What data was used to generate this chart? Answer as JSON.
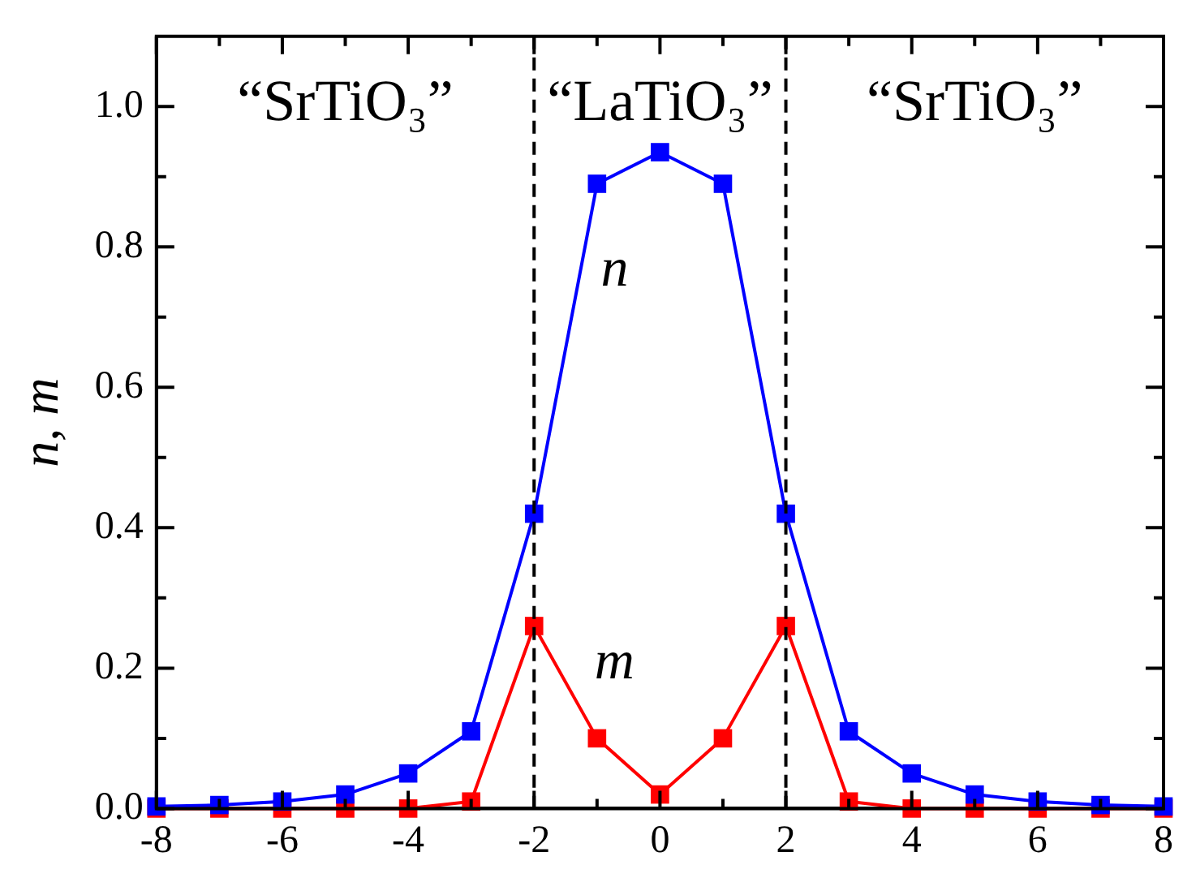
{
  "chart_data": {
    "type": "line",
    "ylabel": "n, m",
    "x": [
      -8,
      -7,
      -6,
      -5,
      -4,
      -3,
      -2,
      -1,
      0,
      1,
      2,
      3,
      4,
      5,
      6,
      7,
      8
    ],
    "series": [
      {
        "name": "n",
        "color": "#0000ff",
        "values": [
          0.003,
          0.005,
          0.01,
          0.02,
          0.05,
          0.11,
          0.42,
          0.89,
          0.935,
          0.89,
          0.42,
          0.11,
          0.05,
          0.02,
          0.01,
          0.005,
          0.003
        ]
      },
      {
        "name": "m",
        "color": "#ff0000",
        "values": [
          0,
          0,
          0,
          0,
          0,
          0.01,
          0.26,
          0.1,
          0.02,
          0.1,
          0.26,
          0.01,
          0,
          0,
          0,
          0,
          0
        ]
      }
    ],
    "marker": "square",
    "line_style": "solid",
    "legend": false,
    "grid": false,
    "xlim": [
      -8,
      8
    ],
    "xticks": [
      -8,
      {
        "value": -7,
        "label": null
      },
      -6,
      {
        "value": -5,
        "label": null
      },
      -4,
      {
        "value": -3,
        "label": null
      },
      -2,
      {
        "value": -1,
        "label": null
      },
      0,
      {
        "value": 1,
        "label": null
      },
      2,
      {
        "value": 3,
        "label": null
      },
      4,
      {
        "value": 5,
        "label": null
      },
      6,
      {
        "value": 7,
        "label": null
      },
      8
    ],
    "ylim": [
      0,
      1.1
    ],
    "yticks": [
      {
        "value": 0,
        "label": "0.0"
      },
      {
        "value": 0.1,
        "label": null
      },
      {
        "value": 0.2,
        "label": "0.2"
      },
      {
        "value": 0.3,
        "label": null
      },
      {
        "value": 0.4,
        "label": "0.4"
      },
      {
        "value": 0.5,
        "label": null
      },
      {
        "value": 0.6,
        "label": "0.6"
      },
      {
        "value": 0.7,
        "label": null
      },
      {
        "value": 0.8,
        "label": "0.8"
      },
      {
        "value": 0.9,
        "label": null
      },
      {
        "value": 1,
        "label": "1.0"
      }
    ],
    "ref_lines": [
      {
        "axis": "x",
        "value": -2,
        "color": "#000000",
        "line_style": "dashed"
      },
      {
        "axis": "x",
        "value": 2,
        "color": "#000000",
        "line_style": "dashed"
      }
    ],
    "annotations": [
      "“SrTiO₃”",
      "“LaTiO₃”",
      "“SrTiO₃”"
    ]
  }
}
